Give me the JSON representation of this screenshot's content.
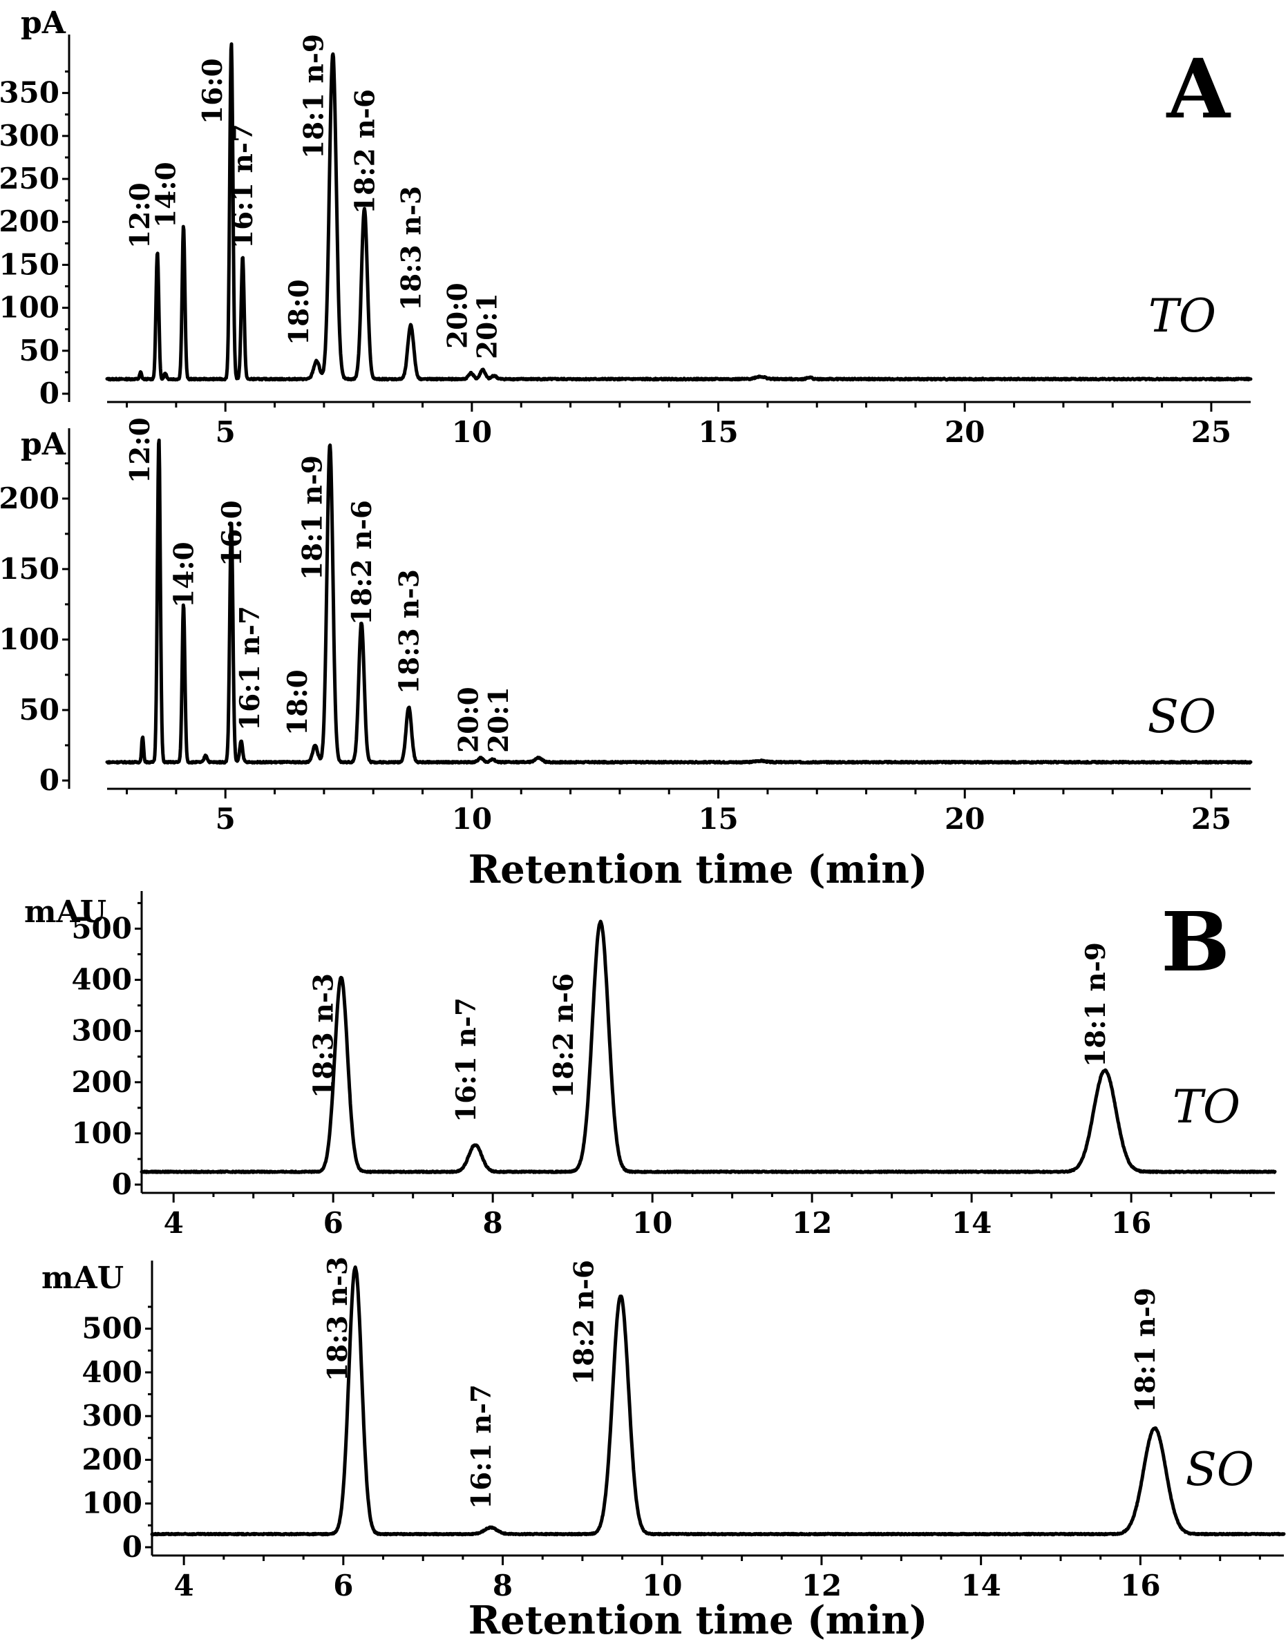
{
  "figure": {
    "panel_A_letter": "A",
    "panel_B_letter": "B",
    "x_axis_title": "Retention time (min)"
  },
  "chart_data": [
    {
      "id": "A_TO",
      "type": "line",
      "panel": "A",
      "sample": "TO",
      "ylabel": "pA",
      "xlabel": "",
      "xlim": [
        2.6,
        25.8
      ],
      "ylim": [
        0,
        410
      ],
      "xticks": [
        5,
        10,
        15,
        20,
        25
      ],
      "yticks": [
        0,
        50,
        100,
        150,
        200,
        250,
        300,
        350
      ],
      "baseline": 17,
      "peaks": [
        {
          "label": "12:0",
          "x": 3.62,
          "y": 165,
          "w": 0.028
        },
        {
          "label": "14:0",
          "x": 4.15,
          "y": 195,
          "w": 0.028
        },
        {
          "label": "16:0",
          "x": 5.12,
          "y": 408,
          "w": 0.032
        },
        {
          "label": "16:1 n-7",
          "x": 5.35,
          "y": 160,
          "w": 0.03
        },
        {
          "label": "18:0",
          "x": 6.85,
          "y": 38,
          "w": 0.06
        },
        {
          "label": "18:1 n-9",
          "x": 7.18,
          "y": 396,
          "w": 0.07
        },
        {
          "label": "18:2 n-6",
          "x": 7.82,
          "y": 215,
          "w": 0.06
        },
        {
          "label": "18:3 n-3",
          "x": 8.76,
          "y": 80,
          "w": 0.06
        },
        {
          "label": "20:0",
          "x": 9.98,
          "y": 24,
          "w": 0.05
        },
        {
          "label": "20:1",
          "x": 10.22,
          "y": 28,
          "w": 0.05
        }
      ],
      "minor_peaks": [
        {
          "x": 3.28,
          "y": 25,
          "w": 0.02
        },
        {
          "x": 3.78,
          "y": 24,
          "w": 0.025
        },
        {
          "x": 10.45,
          "y": 21,
          "w": 0.05
        },
        {
          "x": 15.85,
          "y": 20,
          "w": 0.1
        },
        {
          "x": 16.85,
          "y": 19,
          "w": 0.05
        }
      ],
      "sample_label": "TO"
    },
    {
      "id": "A_SO",
      "type": "line",
      "panel": "A",
      "sample": "SO",
      "ylabel": "pA",
      "xlabel": "Retention time (min)",
      "xlim": [
        2.6,
        25.8
      ],
      "ylim": [
        0,
        245
      ],
      "xticks": [
        5,
        10,
        15,
        20,
        25
      ],
      "yticks": [
        0,
        50,
        100,
        150,
        200
      ],
      "baseline": 13,
      "peaks": [
        {
          "label": "12:0",
          "x": 3.65,
          "y": 243,
          "w": 0.03
        },
        {
          "label": "14:0",
          "x": 4.15,
          "y": 125,
          "w": 0.028
        },
        {
          "label": "16:0",
          "x": 5.12,
          "y": 183,
          "w": 0.032
        },
        {
          "label": "16:1 n-7",
          "x": 5.32,
          "y": 28,
          "w": 0.03
        },
        {
          "label": "18:0",
          "x": 6.82,
          "y": 25,
          "w": 0.05
        },
        {
          "label": "18:1 n-9",
          "x": 7.12,
          "y": 238,
          "w": 0.06
        },
        {
          "label": "18:2 n-6",
          "x": 7.76,
          "y": 112,
          "w": 0.055
        },
        {
          "label": "18:3 n-3",
          "x": 8.72,
          "y": 52,
          "w": 0.055
        },
        {
          "label": "20:0",
          "x": 10.18,
          "y": 16,
          "w": 0.05
        },
        {
          "label": "20:1",
          "x": 10.42,
          "y": 15,
          "w": 0.05
        }
      ],
      "minor_peaks": [
        {
          "x": 3.32,
          "y": 31,
          "w": 0.02
        },
        {
          "x": 4.6,
          "y": 18,
          "w": 0.03
        },
        {
          "x": 11.35,
          "y": 16,
          "w": 0.07
        },
        {
          "x": 15.85,
          "y": 14,
          "w": 0.1
        }
      ],
      "sample_label": "SO"
    },
    {
      "id": "B_TO",
      "type": "line",
      "panel": "B",
      "sample": "TO",
      "ylabel": "mAU",
      "xlabel": "",
      "xlim": [
        3.6,
        17.8
      ],
      "ylim": [
        0,
        560
      ],
      "xticks": [
        4,
        6,
        8,
        10,
        12,
        14,
        16
      ],
      "yticks": [
        0,
        100,
        200,
        300,
        400,
        500
      ],
      "baseline": 25,
      "peaks": [
        {
          "label": "18:3 n-3",
          "x": 6.1,
          "y": 405,
          "w": 0.08
        },
        {
          "label": "16:1 n-7",
          "x": 7.78,
          "y": 78,
          "w": 0.08
        },
        {
          "label": "18:2 n-6",
          "x": 9.35,
          "y": 513,
          "w": 0.1
        },
        {
          "label": "18:1 n-9",
          "x": 15.67,
          "y": 223,
          "w": 0.14
        }
      ],
      "minor_peaks": [],
      "sample_label": "TO"
    },
    {
      "id": "B_SO",
      "type": "line",
      "panel": "B",
      "sample": "SO",
      "ylabel": "mAU",
      "xlabel": "Retention time (min)",
      "xlim": [
        3.6,
        17.8
      ],
      "ylim": [
        0,
        640
      ],
      "xticks": [
        4,
        6,
        8,
        10,
        12,
        14,
        16
      ],
      "yticks": [
        0,
        100,
        200,
        300,
        400,
        500
      ],
      "baseline": 30,
      "peaks": [
        {
          "label": "18:3 n-3",
          "x": 6.15,
          "y": 640,
          "w": 0.08
        },
        {
          "label": "16:1 n-7",
          "x": 7.85,
          "y": 45,
          "w": 0.08
        },
        {
          "label": "18:2 n-6",
          "x": 9.48,
          "y": 575,
          "w": 0.1
        },
        {
          "label": "18:1 n-9",
          "x": 16.18,
          "y": 272,
          "w": 0.14
        }
      ],
      "minor_peaks": [],
      "sample_label": "SO"
    }
  ]
}
